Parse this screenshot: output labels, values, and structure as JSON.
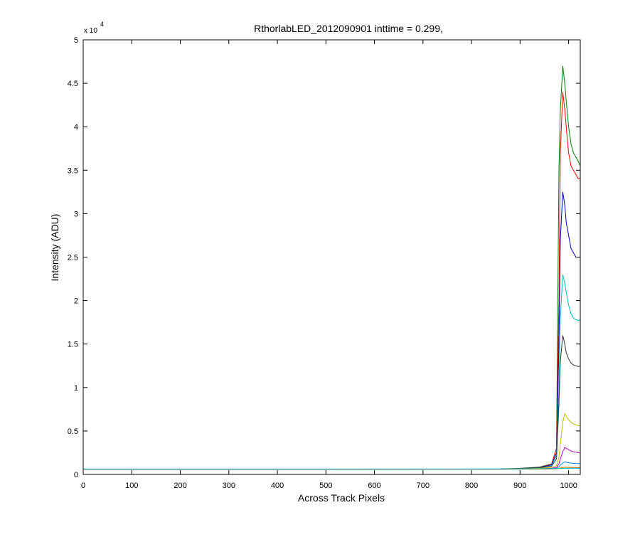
{
  "chart_data": {
    "type": "line",
    "title": "RthorlabLED_2012090901 inttime = 0.299,",
    "xlabel": "Across Track Pixels",
    "ylabel": "Intensity (ADU)",
    "y_multiplier_base": "x 10",
    "y_multiplier_exponent": "4",
    "xlim": [
      0,
      1024
    ],
    "ylim": [
      0,
      50000
    ],
    "x_ticks": [
      0,
      100,
      200,
      300,
      400,
      500,
      600,
      700,
      800,
      900,
      1000
    ],
    "x_tick_labels": [
      "0",
      "100",
      "200",
      "300",
      "400",
      "500",
      "600",
      "700",
      "800",
      "900",
      "1000"
    ],
    "y_ticks": [
      0,
      5000,
      10000,
      15000,
      20000,
      25000,
      30000,
      35000,
      40000,
      45000,
      50000
    ],
    "y_tick_labels": [
      "0",
      "0.5",
      "1",
      "1.5",
      "2",
      "2.5",
      "3",
      "3.5",
      "4",
      "4.5",
      "5"
    ],
    "grid": false,
    "legend": false,
    "series": [
      {
        "color": "#008000",
        "x": [
          0,
          500,
          860,
          900,
          940,
          965,
          975,
          980,
          983,
          988,
          992,
          995,
          1000,
          1005,
          1010,
          1015,
          1020,
          1024
        ],
        "y": [
          600,
          600,
          620,
          700,
          850,
          1200,
          3000,
          35000,
          42000,
          47000,
          45000,
          43000,
          40000,
          38000,
          37000,
          36500,
          36000,
          35500
        ]
      },
      {
        "color": "#ff0000",
        "x": [
          0,
          500,
          860,
          900,
          940,
          965,
          975,
          980,
          983,
          988,
          992,
          995,
          1000,
          1005,
          1010,
          1015,
          1020,
          1024
        ],
        "y": [
          600,
          600,
          620,
          690,
          820,
          1150,
          3000,
          20000,
          37000,
          44000,
          42000,
          40000,
          37000,
          35500,
          35000,
          34500,
          34000,
          34000
        ]
      },
      {
        "color": "#0000cc",
        "x": [
          0,
          500,
          860,
          900,
          940,
          965,
          975,
          980,
          983,
          988,
          992,
          995,
          1000,
          1005,
          1010,
          1015,
          1020,
          1024
        ],
        "y": [
          600,
          600,
          620,
          680,
          800,
          1100,
          2500,
          15000,
          27000,
          32500,
          31000,
          29000,
          27500,
          26000,
          25500,
          25000,
          25000,
          25000
        ]
      },
      {
        "color": "#00bfbf",
        "x": [
          0,
          500,
          860,
          900,
          940,
          965,
          975,
          980,
          983,
          988,
          992,
          995,
          1000,
          1005,
          1010,
          1015,
          1020,
          1024
        ],
        "y": [
          600,
          600,
          620,
          670,
          780,
          1000,
          2200,
          10000,
          18000,
          23000,
          22000,
          21000,
          19500,
          18500,
          18000,
          17800,
          17700,
          17800
        ]
      },
      {
        "color": "#333333",
        "x": [
          0,
          500,
          860,
          900,
          940,
          965,
          975,
          980,
          983,
          988,
          992,
          995,
          1000,
          1005,
          1010,
          1015,
          1020,
          1024
        ],
        "y": [
          600,
          600,
          620,
          660,
          760,
          950,
          1800,
          8000,
          13000,
          16000,
          15000,
          14000,
          13300,
          12800,
          12600,
          12500,
          12400,
          12500
        ]
      },
      {
        "color": "#bfbf00",
        "x": [
          0,
          500,
          860,
          900,
          940,
          965,
          975,
          980,
          983,
          988,
          992,
          995,
          1000,
          1005,
          1010,
          1015,
          1020,
          1024
        ],
        "y": [
          600,
          600,
          610,
          640,
          700,
          800,
          1000,
          2000,
          3500,
          6000,
          7000,
          6700,
          6300,
          6000,
          5800,
          5700,
          5600,
          5600
        ]
      },
      {
        "color": "#bf00bf",
        "x": [
          0,
          500,
          860,
          900,
          940,
          965,
          975,
          980,
          983,
          988,
          992,
          995,
          1000,
          1005,
          1010,
          1015,
          1020,
          1024
        ],
        "y": [
          600,
          600,
          605,
          620,
          650,
          700,
          800,
          1200,
          1800,
          2600,
          3100,
          3000,
          2850,
          2700,
          2600,
          2550,
          2500,
          2500
        ]
      },
      {
        "color": "#0080ff",
        "x": [
          0,
          500,
          860,
          900,
          940,
          965,
          975,
          980,
          983,
          988,
          992,
          995,
          1000,
          1005,
          1010,
          1015,
          1020,
          1024
        ],
        "y": [
          600,
          600,
          602,
          610,
          630,
          660,
          700,
          900,
          1100,
          1300,
          1450,
          1400,
          1350,
          1300,
          1280,
          1260,
          1250,
          1250
        ]
      },
      {
        "color": "#cc6600",
        "x": [
          0,
          500,
          860,
          900,
          940,
          965,
          975,
          980,
          983,
          988,
          992,
          995,
          1000,
          1005,
          1010,
          1015,
          1020,
          1024
        ],
        "y": [
          600,
          600,
          601,
          605,
          615,
          630,
          650,
          700,
          750,
          800,
          830,
          820,
          810,
          800,
          790,
          785,
          780,
          780
        ]
      },
      {
        "color": "#00bfbf",
        "x": [
          0,
          100,
          200,
          300,
          400,
          500,
          600,
          700,
          800,
          850,
          900,
          940,
          970,
          1000,
          1024
        ],
        "y": [
          620,
          625,
          618,
          622,
          620,
          624,
          619,
          621,
          620,
          622,
          640,
          660,
          680,
          700,
          700
        ]
      }
    ]
  }
}
